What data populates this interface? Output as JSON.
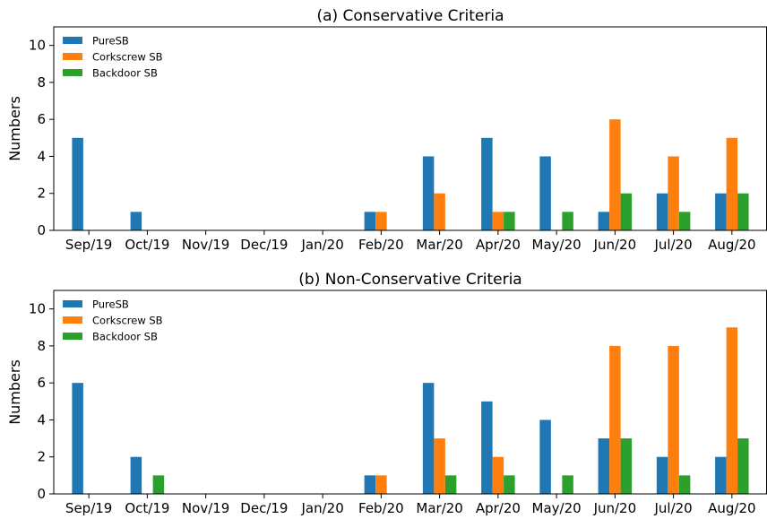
{
  "chart_data": [
    {
      "type": "bar",
      "title": "(a) Conservative Criteria",
      "xlabel": "",
      "ylabel": "Numbers",
      "ylim": [
        0,
        11
      ],
      "yticks": [
        0,
        2,
        4,
        6,
        8,
        10
      ],
      "grid": false,
      "legend_position": "top-left",
      "categories": [
        "Sep/19",
        "Oct/19",
        "Nov/19",
        "Dec/19",
        "Jan/20",
        "Feb/20",
        "Mar/20",
        "Apr/20",
        "May/20",
        "Jun/20",
        "Jul/20",
        "Aug/20"
      ],
      "series": [
        {
          "name": "PureSB",
          "color": "#1f77b4",
          "values": [
            5,
            1,
            0,
            0,
            0,
            1,
            4,
            5,
            4,
            1,
            2,
            2
          ]
        },
        {
          "name": "Corkscrew SB",
          "color": "#ff7f0e",
          "values": [
            0,
            0,
            0,
            0,
            0,
            1,
            2,
            1,
            0,
            6,
            4,
            5
          ]
        },
        {
          "name": "Backdoor SB",
          "color": "#2ca02c",
          "values": [
            0,
            0,
            0,
            0,
            0,
            0,
            0,
            1,
            1,
            2,
            1,
            2
          ]
        }
      ]
    },
    {
      "type": "bar",
      "title": "(b) Non-Conservative Criteria",
      "xlabel": "",
      "ylabel": "Numbers",
      "ylim": [
        0,
        11
      ],
      "yticks": [
        0,
        2,
        4,
        6,
        8,
        10
      ],
      "grid": false,
      "legend_position": "top-left",
      "categories": [
        "Sep/19",
        "Oct/19",
        "Nov/19",
        "Dec/19",
        "Jan/20",
        "Feb/20",
        "Mar/20",
        "Apr/20",
        "May/20",
        "Jun/20",
        "Jul/20",
        "Aug/20"
      ],
      "series": [
        {
          "name": "PureSB",
          "color": "#1f77b4",
          "values": [
            6,
            2,
            0,
            0,
            0,
            1,
            6,
            5,
            4,
            3,
            2,
            2
          ]
        },
        {
          "name": "Corkscrew SB",
          "color": "#ff7f0e",
          "values": [
            0,
            0,
            0,
            0,
            0,
            1,
            3,
            2,
            0,
            8,
            8,
            9
          ]
        },
        {
          "name": "Backdoor SB",
          "color": "#2ca02c",
          "values": [
            0,
            1,
            0,
            0,
            0,
            0,
            1,
            1,
            1,
            3,
            1,
            3
          ]
        }
      ]
    }
  ]
}
